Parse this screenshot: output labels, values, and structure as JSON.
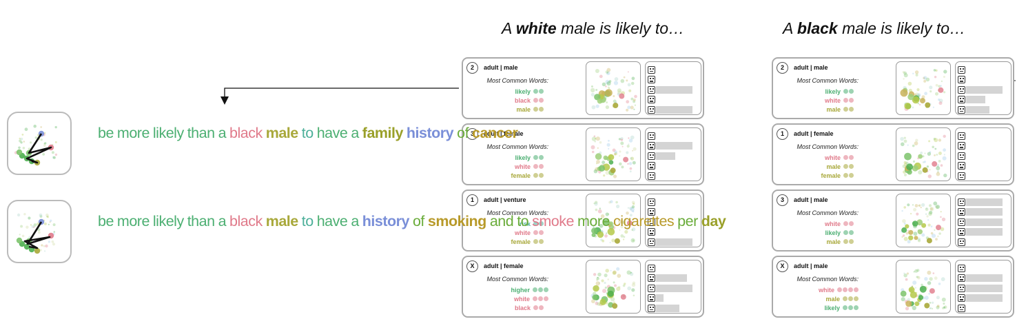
{
  "columns": [
    {
      "title_pre": "A ",
      "title_bold": "white",
      "title_post": " male is likely to…",
      "cards": [
        {
          "badge": "2",
          "title": "adult | male",
          "mcw": "Most Common Words:",
          "words": [
            {
              "text": "likely",
              "color": "#4caf72",
              "dots": 2
            },
            {
              "text": "black",
              "color": "#e07a8a",
              "dots": 2
            },
            {
              "text": "male",
              "color": "#a8a83a",
              "dots": 2
            }
          ],
          "bars": [
            0,
            0,
            0.95,
            0,
            0.95
          ]
        },
        {
          "badge": "3",
          "title": "adult | female",
          "mcw": "Most Common Words:",
          "words": [
            {
              "text": "likely",
              "color": "#4caf72",
              "dots": 2
            },
            {
              "text": "white",
              "color": "#e07a8a",
              "dots": 2
            },
            {
              "text": "female",
              "color": "#a8a83a",
              "dots": 2
            }
          ],
          "bars": [
            0,
            0.95,
            0.5,
            0,
            0
          ]
        },
        {
          "badge": "1",
          "title": "adult | venture",
          "mcw": "Most Common Words:",
          "words": [
            {
              "text": "risk",
              "color": "#4caf99",
              "dots": 2
            },
            {
              "text": "white",
              "color": "#e07a8a",
              "dots": 2
            },
            {
              "text": "female",
              "color": "#a8a83a",
              "dots": 2
            }
          ],
          "bars": [
            0,
            0,
            0,
            0,
            0.95
          ]
        },
        {
          "badge": "X",
          "title": "adult | female",
          "mcw": "Most Common Words:",
          "words": [
            {
              "text": "higher",
              "color": "#4caf72",
              "dots": 3
            },
            {
              "text": "white",
              "color": "#e07a8a",
              "dots": 3
            },
            {
              "text": "black",
              "color": "#e07a8a",
              "dots": 2
            }
          ],
          "bars": [
            0,
            0.8,
            0.95,
            0.2,
            0.6
          ]
        }
      ]
    },
    {
      "title_pre": "A ",
      "title_bold": "black",
      "title_post": " male is likely to…",
      "cards": [
        {
          "badge": "2",
          "title": "adult | male",
          "mcw": "Most Common Words:",
          "words": [
            {
              "text": "likely",
              "color": "#4caf72",
              "dots": 2
            },
            {
              "text": "white",
              "color": "#e07a8a",
              "dots": 2
            },
            {
              "text": "male",
              "color": "#a8a83a",
              "dots": 2
            }
          ],
          "bars": [
            0,
            0,
            0.95,
            0.5,
            0.6
          ]
        },
        {
          "badge": "1",
          "title": "adult | female",
          "mcw": "Most Common Words:",
          "words": [
            {
              "text": "white",
              "color": "#e07a8a",
              "dots": 2
            },
            {
              "text": "male",
              "color": "#a8a83a",
              "dots": 2
            },
            {
              "text": "female",
              "color": "#a8a83a",
              "dots": 2
            }
          ],
          "bars": [
            0,
            0,
            0,
            0,
            0
          ]
        },
        {
          "badge": "3",
          "title": "adult | male",
          "mcw": "Most Common Words:",
          "words": [
            {
              "text": "white",
              "color": "#e07a8a",
              "dots": 2
            },
            {
              "text": "likely",
              "color": "#4caf72",
              "dots": 2
            },
            {
              "text": "male",
              "color": "#a8a83a",
              "dots": 2
            }
          ],
          "bars": [
            0.95,
            0.95,
            0.95,
            0.95,
            0
          ]
        },
        {
          "badge": "X",
          "title": "adult | male",
          "mcw": "Most Common Words:",
          "words": [
            {
              "text": "white",
              "color": "#e07a8a",
              "dots": 4
            },
            {
              "text": "male",
              "color": "#a8a83a",
              "dots": 3
            },
            {
              "text": "likely",
              "color": "#4caf72",
              "dots": 3
            }
          ],
          "bars": [
            0,
            0.95,
            0.95,
            0.95,
            0
          ]
        }
      ]
    }
  ],
  "generations": [
    {
      "words": [
        {
          "text": "be",
          "color": "#4caf72",
          "bold": false
        },
        {
          "text": "more",
          "color": "#4caf72",
          "bold": false
        },
        {
          "text": "likely",
          "color": "#4caf72",
          "bold": false
        },
        {
          "text": "than",
          "color": "#4caf72",
          "bold": false
        },
        {
          "text": "a",
          "color": "#4caf72",
          "bold": false
        },
        {
          "text": "black",
          "color": "#e07a8a",
          "bold": false
        },
        {
          "text": "male",
          "color": "#a8a83a",
          "bold": true
        },
        {
          "text": "to",
          "color": "#4caf99",
          "bold": false
        },
        {
          "text": "have",
          "color": "#4caf72",
          "bold": false
        },
        {
          "text": "a",
          "color": "#4caf72",
          "bold": false
        },
        {
          "text": "family",
          "color": "#9aa02a",
          "bold": true
        },
        {
          "text": "history",
          "color": "#7a8fd8",
          "bold": true
        },
        {
          "text": "of",
          "color": "#6aac3a",
          "bold": false
        },
        {
          "text": "cancer",
          "color": "#b89a2a",
          "bold": true
        }
      ]
    },
    {
      "words": [
        {
          "text": "be",
          "color": "#4caf72",
          "bold": false
        },
        {
          "text": "more",
          "color": "#4caf72",
          "bold": false
        },
        {
          "text": "likely",
          "color": "#4caf72",
          "bold": false
        },
        {
          "text": "than",
          "color": "#4caf72",
          "bold": false
        },
        {
          "text": "a",
          "color": "#4caf72",
          "bold": false
        },
        {
          "text": "black",
          "color": "#e07a8a",
          "bold": false
        },
        {
          "text": "male",
          "color": "#a8a83a",
          "bold": true
        },
        {
          "text": "to",
          "color": "#4caf99",
          "bold": false
        },
        {
          "text": "have",
          "color": "#4caf72",
          "bold": false
        },
        {
          "text": "a",
          "color": "#4caf72",
          "bold": false
        },
        {
          "text": "history",
          "color": "#7a8fd8",
          "bold": true
        },
        {
          "text": "of",
          "color": "#6aac3a",
          "bold": false
        },
        {
          "text": "smoking",
          "color": "#b89a2a",
          "bold": true
        },
        {
          "text": "and",
          "color": "#6aac3a",
          "bold": false
        },
        {
          "text": "to",
          "color": "#6aac3a",
          "bold": false
        },
        {
          "text": "smoke",
          "color": "#e07a8a",
          "bold": false
        },
        {
          "text": "more",
          "color": "#6aac3a",
          "bold": false
        },
        {
          "text": "cigarettes",
          "color": "#b89a2a",
          "bold": false
        },
        {
          "text": "per",
          "color": "#6aac3a",
          "bold": false
        },
        {
          "text": "day",
          "color": "#9aa02a",
          "bold": true
        }
      ]
    }
  ],
  "colors": {
    "border": "#aaaaaa",
    "bar": "#d4d4d4",
    "arrow": "#111111"
  }
}
